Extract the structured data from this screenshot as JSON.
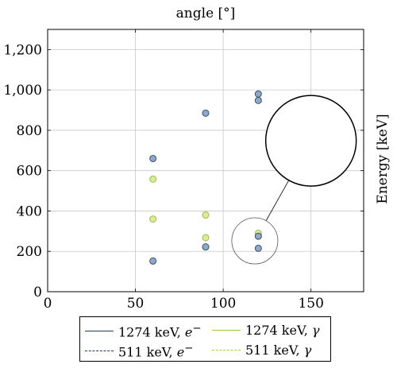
{
  "chart_data": {
    "type": "scatter",
    "title": "angle [°]",
    "xlabel": "",
    "ylabel": "Energy [keV]",
    "xlim": [
      0,
      180
    ],
    "ylim": [
      0,
      1300
    ],
    "x_ticks": [
      0,
      50,
      100,
      150
    ],
    "x_tick_labels": [
      "0",
      "50",
      "100",
      "150"
    ],
    "y_ticks": [
      0,
      200,
      400,
      600,
      800,
      1000,
      1200
    ],
    "y_tick_labels": [
      "0",
      "200",
      "400",
      "600",
      "800",
      "1,000",
      "1,200"
    ],
    "grid": true,
    "legend_position": "bottom",
    "series": [
      {
        "name": "1274 keV, e⁻",
        "color": "#8eaac8",
        "edge": "#3a4f6a",
        "points": [
          {
            "x": 60,
            "y": 660
          },
          {
            "x": 90,
            "y": 885
          },
          {
            "x": 120,
            "y": 980
          },
          {
            "x": 120,
            "y": 948
          },
          {
            "x": 120,
            "y": 275
          }
        ]
      },
      {
        "name": "511 keV, e⁻",
        "color": "#8eaac8",
        "edge": "#3a4f6a",
        "points": [
          {
            "x": 60,
            "y": 152
          },
          {
            "x": 90,
            "y": 222
          },
          {
            "x": 120,
            "y": 215
          }
        ]
      },
      {
        "name": "1274 keV, γ",
        "color": "#d8ec9a",
        "edge": "#a0b84a",
        "points": [
          {
            "x": 60,
            "y": 558
          },
          {
            "x": 90,
            "y": 380
          },
          {
            "x": 120,
            "y": 290
          }
        ]
      },
      {
        "name": "511 keV, γ",
        "color": "#d8ec9a",
        "edge": "#a0b84a",
        "points": [
          {
            "x": 60,
            "y": 360
          },
          {
            "x": 90,
            "y": 268
          }
        ]
      }
    ],
    "zoom_inset": {
      "source_center": {
        "x": 118,
        "y": 252
      },
      "target_center": {
        "x": 150,
        "y": 748
      }
    }
  },
  "legend": [
    {
      "label": "1274 keV, ",
      "sym": "e",
      "sup": "−",
      "color": "#1f3a5f",
      "style": "solid"
    },
    {
      "label": "1274 keV, ",
      "sym": "γ",
      "sup": "",
      "color": "#9acd32",
      "style": "solid"
    },
    {
      "label": "511 keV, ",
      "sym": "e",
      "sup": "−",
      "color": "#1f3a5f",
      "style": "dashed"
    },
    {
      "label": "511 keV, ",
      "sym": "γ",
      "sup": "",
      "color": "#9acd32",
      "style": "dashed"
    }
  ]
}
